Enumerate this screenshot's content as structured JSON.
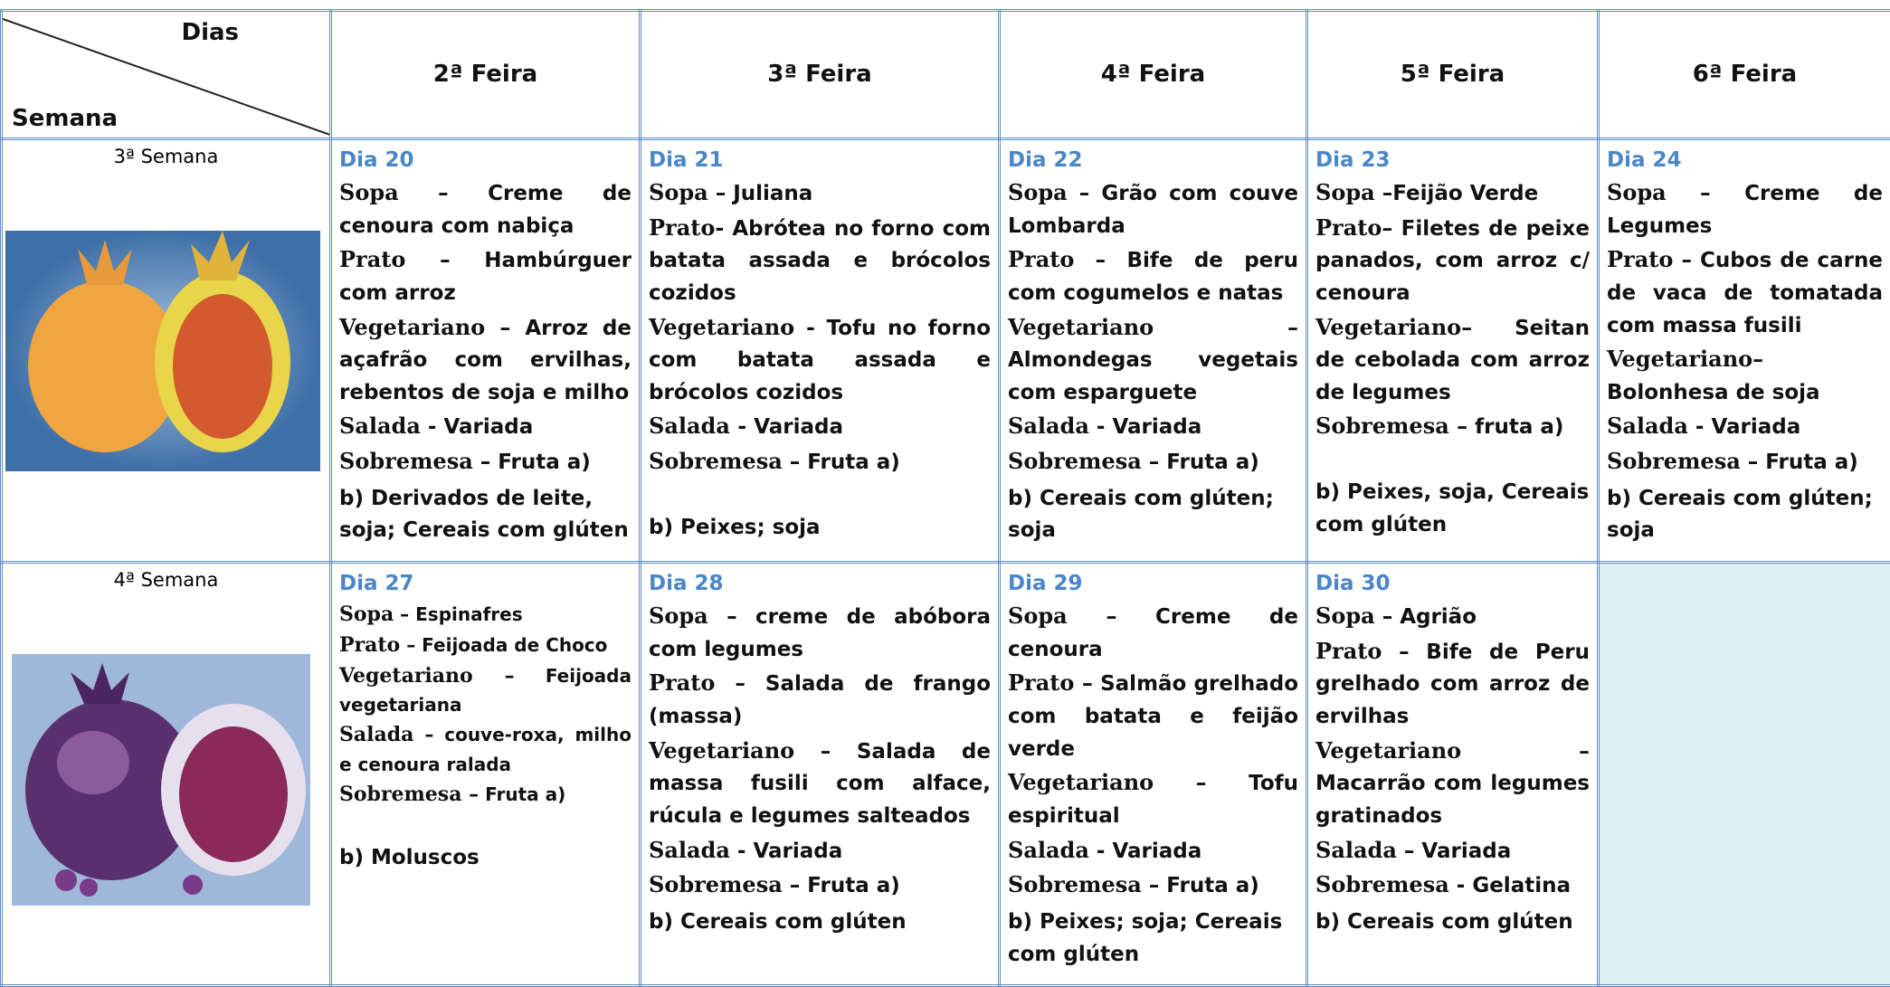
{
  "header": {
    "corner_top": "Dias",
    "corner_bottom": "Semana",
    "days": [
      "2ª Feira",
      "3ª Feira",
      "4ª Feira",
      "5ª Feira",
      "6ª Feira"
    ]
  },
  "rows": [
    {
      "week": "3ª Semana",
      "cells": [
        {
          "day": "Dia 20",
          "items": [
            [
              "Sopa",
              "– Creme de cenoura com nabiça"
            ],
            [
              "Prato",
              "– Hambúrguer com arroz"
            ],
            [
              "Vegetariano –",
              "Arroz de açafrão com ervilhas, rebentos de soja e milho"
            ],
            [
              "Salada",
              "- Variada"
            ],
            [
              "Sobremesa",
              "– Fruta a)"
            ]
          ],
          "allergens": "b) Derivados de leite, soja; Cereais com glúten"
        },
        {
          "day": "Dia 21",
          "items": [
            [
              "Sopa",
              "– Juliana"
            ],
            [
              "Prato-",
              "Abrótea no forno com batata assada e brócolos cozidos"
            ],
            [
              "Vegetariano -",
              "Tofu no forno com batata assada e brócolos cozidos"
            ],
            [
              "Salada -",
              "Variada"
            ],
            [
              "Sobremesa",
              "– Fruta a)"
            ]
          ],
          "allergens": "b) Peixes; soja"
        },
        {
          "day": "Dia 22",
          "items": [
            [
              "Sopa",
              "– Grão com couve Lombarda"
            ],
            [
              "Prato",
              "– Bife de peru com cogumelos e natas"
            ],
            [
              "Vegetariano –",
              "Almondegas vegetais com esparguete"
            ],
            [
              "Salada",
              "- Variada"
            ],
            [
              "Sobremesa",
              "– Fruta a)"
            ]
          ],
          "allergens": "b) Cereais com glúten; soja"
        },
        {
          "day": "Dia 23",
          "items": [
            [
              "Sopa",
              "–Feijão Verde"
            ],
            [
              "Prato–",
              "Filetes de peixe panados, com arroz c/ cenoura"
            ],
            [
              "Vegetariano–",
              "Seitan de cebolada com arroz de legumes"
            ],
            [
              "Sobremesa –",
              "fruta a)"
            ]
          ],
          "allergens": "b) Peixes, soja, Cereais com glúten"
        },
        {
          "day": "Dia 24",
          "items": [
            [
              "Sopa",
              "– Creme de Legumes"
            ],
            [
              "Prato",
              "– Cubos de carne de vaca de tomatada com massa fusili"
            ],
            [
              "Vegetariano–",
              "Bolonhesa de soja"
            ],
            [
              "Salada",
              "- Variada"
            ],
            [
              "Sobremesa",
              "– Fruta a)"
            ]
          ],
          "allergens": "b) Cereais com glúten; soja"
        }
      ]
    },
    {
      "week": "4ª Semana",
      "cells": [
        {
          "day": "Dia 27",
          "items": [
            [
              "Sopa",
              "– Espinafres"
            ],
            [
              "Prato",
              "– Feijoada de Choco"
            ],
            [
              "Vegetariano –",
              "Feijoada vegetariana"
            ],
            [
              "Salada",
              "– couve-roxa, milho e cenoura ralada"
            ],
            [
              "Sobremesa –",
              "Fruta a)"
            ]
          ],
          "allergens": "b) Moluscos"
        },
        {
          "day": "Dia 28",
          "items": [
            [
              "Sopa",
              "– creme de abóbora com legumes"
            ],
            [
              "Prato",
              "– Salada de frango (massa)"
            ],
            [
              "Vegetariano",
              "– Salada de massa fusili com alface, rúcula e legumes salteados"
            ],
            [
              "Salada",
              "- Variada"
            ],
            [
              "Sobremesa",
              "– Fruta a)"
            ]
          ],
          "allergens": "b) Cereais com glúten"
        },
        {
          "day": "Dia 29",
          "items": [
            [
              "Sopa –",
              "Creme de cenoura"
            ],
            [
              "Prato –",
              "Salmão grelhado com batata e feijão verde"
            ],
            [
              "Vegetariano",
              "– Tofu espiritual"
            ],
            [
              "Salada",
              "- Variada"
            ],
            [
              "Sobremesa",
              "– Fruta a)"
            ]
          ],
          "allergens": "b) Peixes; soja; Cereais com glúten"
        },
        {
          "day": "Dia 30",
          "items": [
            [
              "Sopa",
              "– Agrião"
            ],
            [
              "Prato",
              "– Bife de Peru grelhado com arroz de ervilhas"
            ],
            [
              "Vegetariano –",
              "Macarrão com legumes gratinados"
            ],
            [
              "Salada",
              "– Variada"
            ],
            [
              "Sobremesa",
              "- Gelatina"
            ]
          ],
          "allergens": "b) Cereais com glúten"
        }
      ]
    }
  ]
}
